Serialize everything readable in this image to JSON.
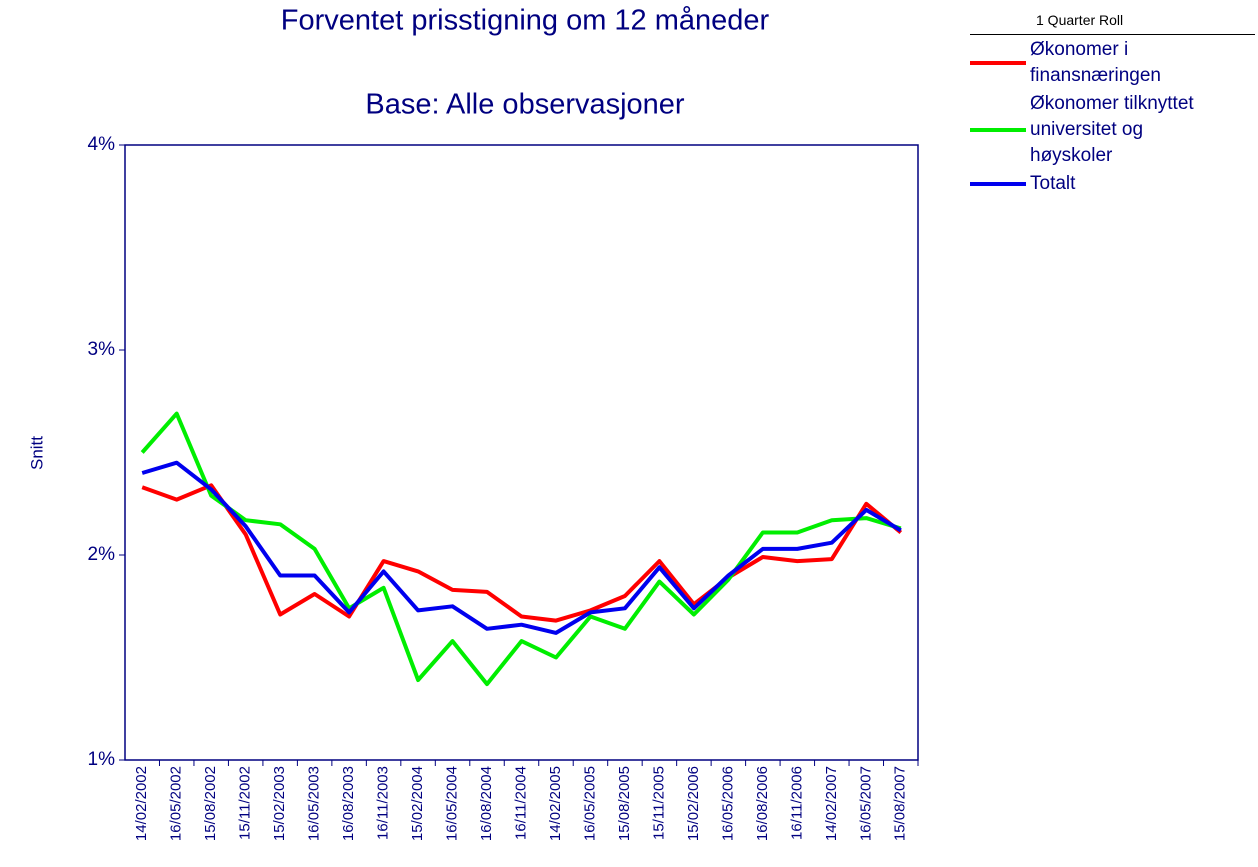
{
  "chart_data": {
    "type": "line",
    "title": "Forventet prisstigning om 12 måneder",
    "subtitle": "Base: Alle observasjoner",
    "ylabel": "Snitt",
    "legend_title": "1 Quarter Roll",
    "legend": "right",
    "categories": [
      "14/02/2002",
      "16/05/2002",
      "15/08/2002",
      "15/11/2002",
      "15/02/2003",
      "16/05/2003",
      "16/08/2003",
      "16/11/2003",
      "15/02/2004",
      "16/05/2004",
      "16/08/2004",
      "16/11/2004",
      "14/02/2005",
      "16/05/2005",
      "15/08/2005",
      "15/11/2005",
      "15/02/2006",
      "16/05/2006",
      "16/08/2006",
      "16/11/2006",
      "14/02/2007",
      "16/05/2007",
      "15/08/2007"
    ],
    "series": [
      {
        "name": "Økonomer i finansnæringen",
        "color": "#ff0000",
        "values": [
          2.33,
          2.27,
          2.34,
          2.1,
          1.71,
          1.81,
          1.7,
          1.97,
          1.92,
          1.83,
          1.82,
          1.7,
          1.68,
          1.73,
          1.8,
          1.97,
          1.76,
          1.89,
          1.99,
          1.97,
          1.98,
          2.25,
          2.11
        ]
      },
      {
        "name": "Økonomer tilknyttet universitet og høyskoler",
        "color": "#00ee00",
        "values": [
          2.5,
          2.69,
          2.29,
          2.17,
          2.15,
          2.03,
          1.74,
          1.84,
          1.39,
          1.58,
          1.37,
          1.58,
          1.5,
          1.7,
          1.64,
          1.87,
          1.71,
          1.88,
          2.11,
          2.11,
          2.17,
          2.18,
          2.13
        ]
      },
      {
        "name": "Totalt",
        "color": "#0000ee",
        "values": [
          2.4,
          2.45,
          2.32,
          2.14,
          1.9,
          1.9,
          1.72,
          1.92,
          1.73,
          1.75,
          1.64,
          1.66,
          1.62,
          1.72,
          1.74,
          1.94,
          1.74,
          1.9,
          2.03,
          2.03,
          2.06,
          2.22,
          2.12
        ]
      }
    ],
    "ylim": [
      1,
      4
    ],
    "yticks": [
      {
        "value": 1,
        "label": "1%"
      },
      {
        "value": 2,
        "label": "2%"
      },
      {
        "value": 3,
        "label": "3%"
      },
      {
        "value": 4,
        "label": "4%"
      }
    ]
  }
}
